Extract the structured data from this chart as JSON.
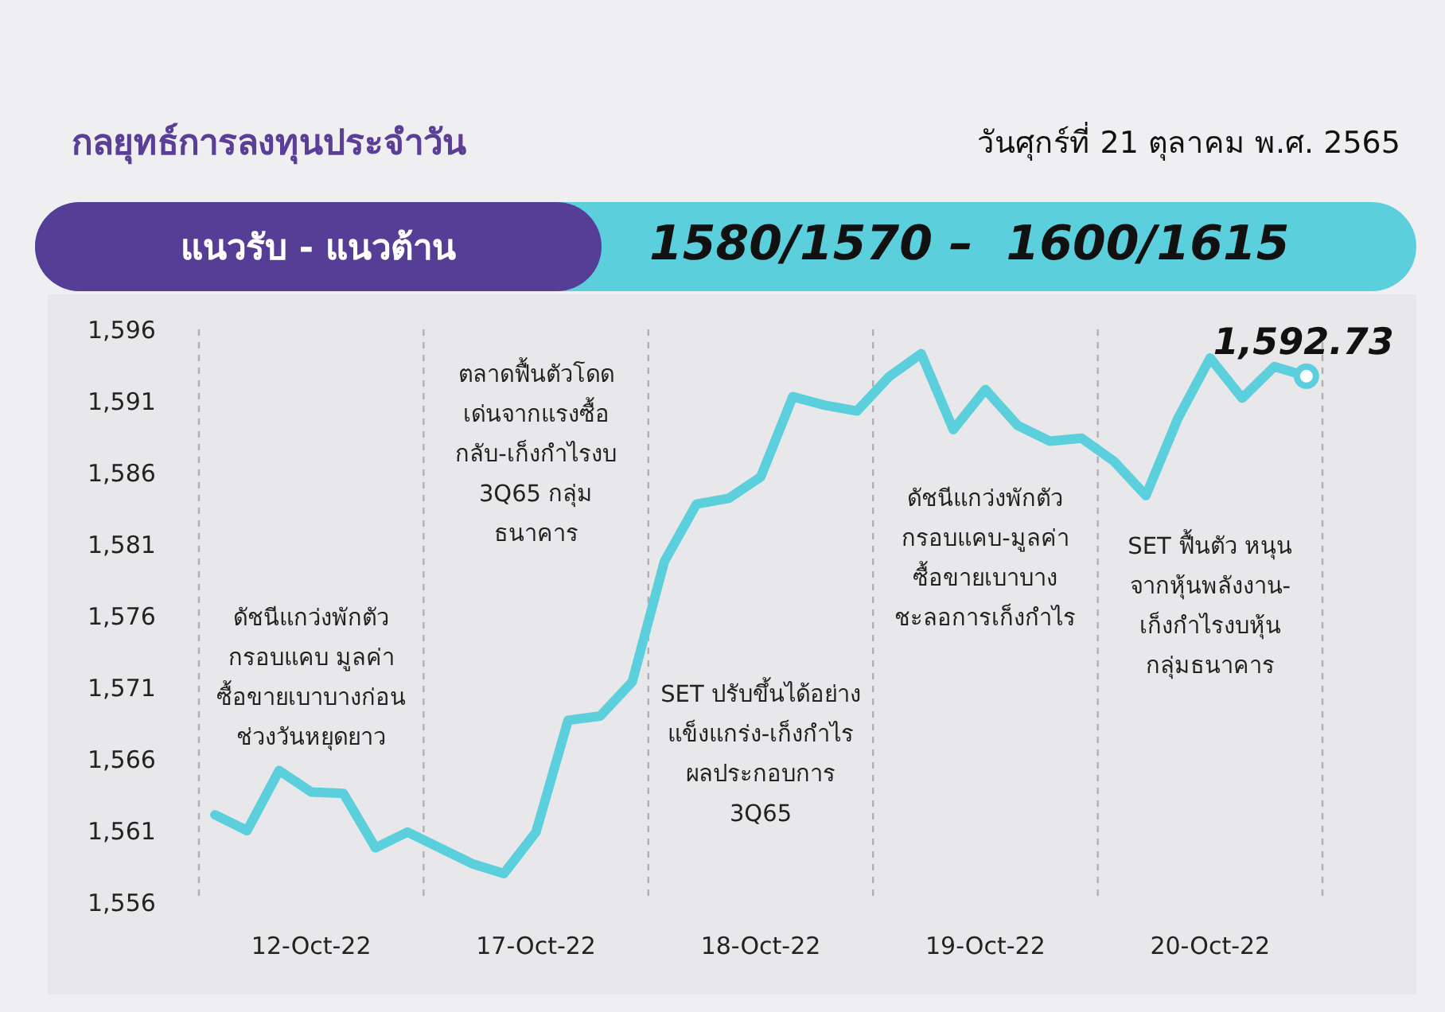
{
  "chart_data": {
    "type": "line",
    "title": "กลยุทธ์การลงทุนประจำวัน",
    "subtitle": "วันศุกร์ที่ 21 ตุลาคม พ.ศ. 2565",
    "categories": [
      null,
      null,
      null,
      "12-Oct-22",
      null,
      null,
      null,
      null,
      null,
      null,
      "17-Oct-22",
      null,
      null,
      null,
      null,
      null,
      null,
      "18-Oct-22",
      null,
      null,
      null,
      null,
      null,
      null,
      "19-Oct-22",
      null,
      null,
      null,
      null,
      null,
      null,
      "20-Oct-22",
      null,
      null,
      null
    ],
    "series": [
      {
        "color": "#5ccfdd",
        "values": [
          1562.1,
          1561.0,
          1565.2,
          1563.7,
          1563.6,
          1559.8,
          1560.9,
          1559.8,
          1558.7,
          1558.0,
          1560.9,
          1568.7,
          1569.0,
          1571.4,
          1579.8,
          1583.8,
          1584.2,
          1585.7,
          1591.3,
          1590.7,
          1590.3,
          1592.7,
          1594.3,
          1589.0,
          1591.8,
          1589.3,
          1588.2,
          1588.4,
          1586.8,
          1584.4,
          1589.8,
          1594.0,
          1591.2,
          1593.4,
          1592.73
        ],
        "value_labels": [
          null,
          null,
          null,
          null,
          null,
          null,
          null,
          null,
          null,
          null,
          null,
          null,
          null,
          null,
          null,
          null,
          null,
          null,
          null,
          null,
          null,
          null,
          null,
          null,
          null,
          null,
          null,
          null,
          null,
          null,
          null,
          null,
          null,
          null,
          "1,592.73"
        ]
      }
    ],
    "ylim": [
      1556,
      1596
    ],
    "yticks": [
      {
        "value": 1556,
        "label": "1,556"
      },
      {
        "value": 1561,
        "label": "1,561"
      },
      {
        "value": 1566,
        "label": "1,566"
      },
      {
        "value": 1571,
        "label": "1,571"
      },
      {
        "value": 1576,
        "label": "1,576"
      },
      {
        "value": 1581,
        "label": "1,581"
      },
      {
        "value": 1586,
        "label": "1,586"
      },
      {
        "value": 1591,
        "label": "1,591"
      },
      {
        "value": 1596,
        "label": "1,596"
      }
    ],
    "annotations": [
      "แนวรับ - แนวต้าน",
      "1580/1570 –  1600/1615",
      "ดัชนีแกว่งพักตัว\nกรอบแคบ มูลค่า\nซื้อขายเบาบางก่อน\nช่วงวันหยุดยาว",
      "ตลาดฟื้นตัวโดด\nเด่นจากแรงซื้อ\nกลับ-เก็งกำไรงบ\n3Q65 กลุ่ม\nธนาคาร",
      "SET ปรับขึ้นได้อย่าง\nแข็งแกร่ง-เก็งกำไร\nผลประกอบการ\n3Q65",
      "ดัชนีแกว่งพักตัว\nกรอบแคบ-มูลค่า\nซื้อขายเบาบาง\nชะลอการเก็งกำไร",
      "SET ฟื้นตัว หนุน\nจากหุ้นพลังงาน-\nเก็งกำไรงบหุ้น\nกลุ่มธนาคาร"
    ],
    "grid": "x",
    "line_style": "solid",
    "marker": "none"
  }
}
